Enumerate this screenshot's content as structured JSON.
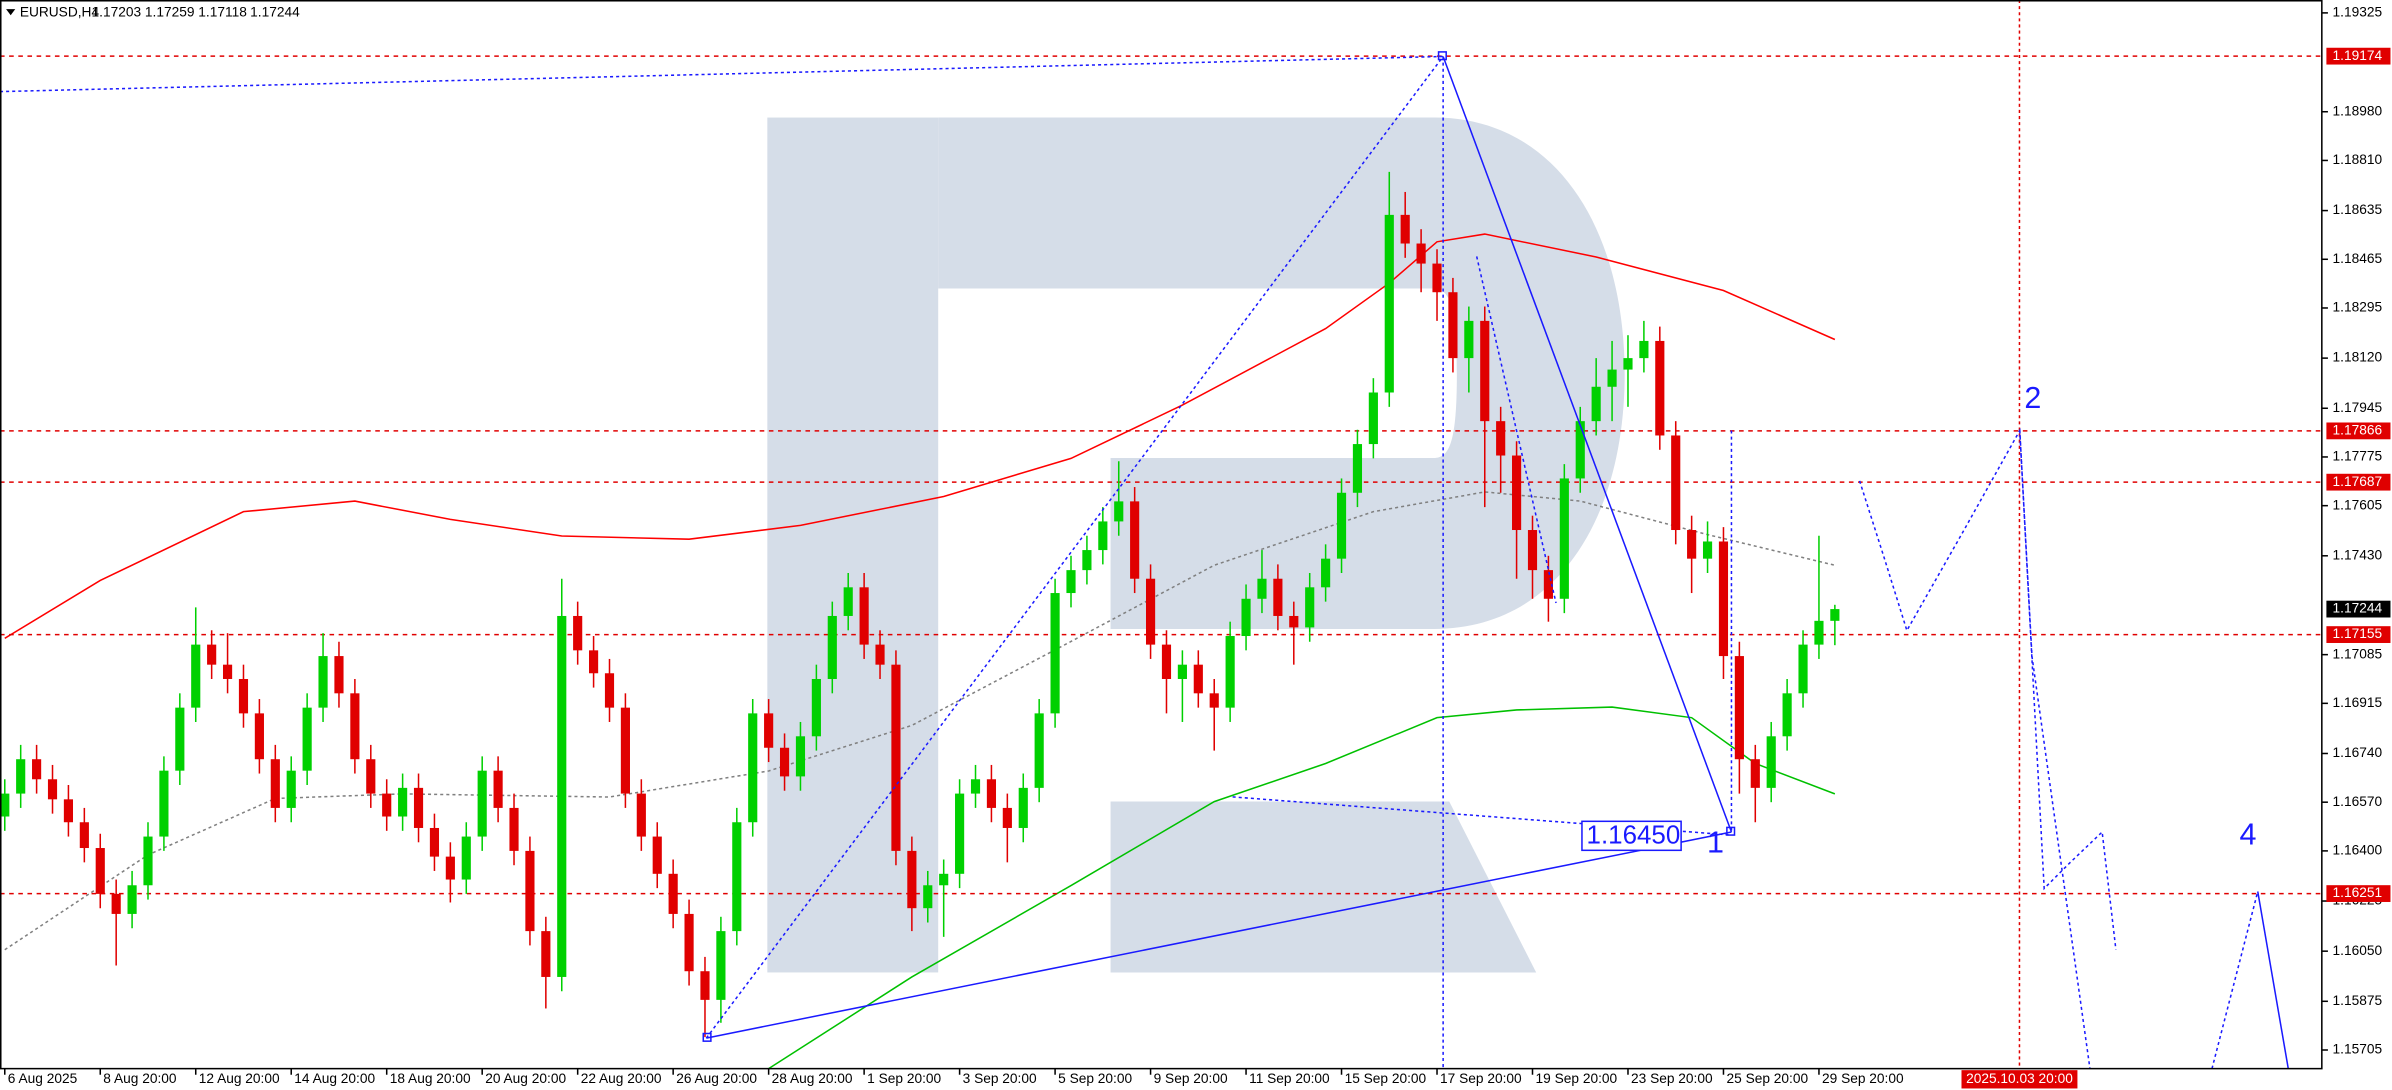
{
  "chart_data": {
    "type": "candlestick",
    "symbol": "EURUSD,H4",
    "up_color": "#00d000",
    "down_color": "#e00000",
    "xlim": [
      -0.3,
      145.6
    ],
    "ylim": [
      1.1564,
      1.1937
    ],
    "xticks": [
      {
        "value": 0,
        "label": "6 Aug 2025"
      },
      {
        "value": 6,
        "label": "8 Aug 20:00"
      },
      {
        "value": 12,
        "label": "12 Aug 20:00"
      },
      {
        "value": 18,
        "label": "14 Aug 20:00"
      },
      {
        "value": 24,
        "label": "18 Aug 20:00"
      },
      {
        "value": 30,
        "label": "20 Aug 20:00"
      },
      {
        "value": 36,
        "label": "22 Aug 20:00"
      },
      {
        "value": 42,
        "label": "26 Aug 20:00"
      },
      {
        "value": 48,
        "label": "28 Aug 20:00"
      },
      {
        "value": 54,
        "label": "1 Sep 20:00"
      },
      {
        "value": 60,
        "label": "3 Sep 20:00"
      },
      {
        "value": 66,
        "label": "5 Sep 20:00"
      },
      {
        "value": 72,
        "label": "9 Sep 20:00"
      },
      {
        "value": 78,
        "label": "11 Sep 20:00"
      },
      {
        "value": 84,
        "label": "15 Sep 20:00"
      },
      {
        "value": 90,
        "label": "17 Sep 20:00"
      },
      {
        "value": 96,
        "label": "19 Sep 20:00"
      },
      {
        "value": 102,
        "label": "23 Sep 20:00"
      },
      {
        "value": 108,
        "label": "25 Sep 20:00"
      },
      {
        "value": 114,
        "label": "29 Sep 20:00"
      }
    ],
    "yticks": [
      1.19325,
      {
        "value": 1.1898,
        "label": "1.18980"
      },
      {
        "value": 1.1881,
        "label": "1.18810"
      },
      1.18635,
      1.18465,
      1.18295,
      {
        "value": 1.1812,
        "label": "1.18120"
      },
      1.17945,
      1.17775,
      1.17605,
      {
        "value": 1.1743,
        "label": "1.17430"
      },
      1.17085,
      1.16915,
      {
        "value": 1.1674,
        "label": "1.16740"
      },
      {
        "value": 1.1657,
        "label": "1.16570"
      },
      {
        "value": 1.164,
        "label": "1.16400"
      },
      1.16225,
      {
        "value": 1.1605,
        "label": "1.16050"
      },
      1.15875,
      1.15705
    ],
    "open": [
      1.1652,
      1.166,
      1.1672,
      1.1665,
      1.1658,
      1.165,
      1.1641,
      1.1625,
      1.1618,
      1.1628,
      1.1645,
      1.1668,
      1.169,
      1.1712,
      1.1705,
      1.17,
      1.1688,
      1.1672,
      1.1655,
      1.1668,
      1.169,
      1.1708,
      1.1695,
      1.1672,
      1.166,
      1.1652,
      1.1662,
      1.1648,
      1.1638,
      1.163,
      1.1645,
      1.1668,
      1.1655,
      1.164,
      1.1612,
      1.1596,
      1.1722,
      1.171,
      1.1702,
      1.169,
      1.166,
      1.1645,
      1.1632,
      1.1618,
      1.1598,
      1.1588,
      1.1612,
      1.165,
      1.1688,
      1.1676,
      1.1666,
      1.168,
      1.17,
      1.1722,
      1.1732,
      1.1712,
      1.1705,
      1.164,
      1.162,
      1.1628,
      1.1632,
      1.166,
      1.1665,
      1.1655,
      1.1648,
      1.1662,
      1.1688,
      1.173,
      1.1738,
      1.1745,
      1.1755,
      1.1762,
      1.1735,
      1.1712,
      1.17,
      1.1705,
      1.1695,
      1.169,
      1.1715,
      1.1728,
      1.1735,
      1.1722,
      1.1718,
      1.1732,
      1.1742,
      1.1765,
      1.1782,
      1.18,
      1.1862,
      1.1852,
      1.1845,
      1.1835,
      1.1812,
      1.1825,
      1.179,
      1.1778,
      1.1752,
      1.1738,
      1.1728,
      1.177,
      1.179,
      1.1802,
      1.1808,
      1.1812,
      1.1818,
      1.1785,
      1.1752,
      1.1742,
      1.1748,
      1.1708,
      1.1672,
      1.1662,
      1.168,
      1.1695,
      1.1712,
      1.17203
    ],
    "high": [
      1.1665,
      1.1677,
      1.1677,
      1.167,
      1.1663,
      1.1655,
      1.1646,
      1.163,
      1.1633,
      1.165,
      1.1673,
      1.1695,
      1.1725,
      1.1717,
      1.1716,
      1.1705,
      1.1693,
      1.1677,
      1.1673,
      1.1695,
      1.1716,
      1.1713,
      1.17,
      1.1677,
      1.1665,
      1.1667,
      1.1667,
      1.1653,
      1.1643,
      1.165,
      1.1673,
      1.1673,
      1.166,
      1.1645,
      1.1617,
      1.1735,
      1.1727,
      1.1715,
      1.1707,
      1.1695,
      1.1665,
      1.165,
      1.1637,
      1.1623,
      1.1603,
      1.1617,
      1.1655,
      1.1693,
      1.1693,
      1.1681,
      1.1685,
      1.1705,
      1.1727,
      1.1737,
      1.1737,
      1.1717,
      1.171,
      1.1645,
      1.1633,
      1.1637,
      1.1665,
      1.167,
      1.167,
      1.166,
      1.1667,
      1.1693,
      1.1735,
      1.1743,
      1.175,
      1.176,
      1.1776,
      1.1767,
      1.174,
      1.1717,
      1.171,
      1.171,
      1.17,
      1.172,
      1.1733,
      1.1745,
      1.174,
      1.1727,
      1.1737,
      1.1747,
      1.177,
      1.1787,
      1.1805,
      1.1877,
      1.187,
      1.1857,
      1.185,
      1.184,
      1.183,
      1.183,
      1.1795,
      1.1783,
      1.1757,
      1.1743,
      1.1775,
      1.1795,
      1.1812,
      1.1818,
      1.182,
      1.1825,
      1.1823,
      1.179,
      1.1757,
      1.1755,
      1.1753,
      1.1713,
      1.1677,
      1.1685,
      1.17,
      1.1717,
      1.175,
      1.17259
    ],
    "low": [
      1.1647,
      1.1655,
      1.166,
      1.1653,
      1.1645,
      1.1636,
      1.162,
      1.16,
      1.1613,
      1.1623,
      1.164,
      1.1663,
      1.1685,
      1.17,
      1.1695,
      1.1683,
      1.1667,
      1.165,
      1.165,
      1.1663,
      1.1685,
      1.169,
      1.1667,
      1.1655,
      1.1647,
      1.1647,
      1.1643,
      1.1633,
      1.1622,
      1.1625,
      1.164,
      1.165,
      1.1635,
      1.1607,
      1.1585,
      1.1591,
      1.1705,
      1.1697,
      1.1685,
      1.1655,
      1.164,
      1.1627,
      1.1613,
      1.1593,
      1.1575,
      1.158,
      1.1607,
      1.1645,
      1.1671,
      1.1661,
      1.1661,
      1.1675,
      1.1695,
      1.1717,
      1.1707,
      1.17,
      1.1635,
      1.1612,
      1.1615,
      1.161,
      1.1627,
      1.1655,
      1.165,
      1.1636,
      1.1643,
      1.1657,
      1.1683,
      1.1725,
      1.1733,
      1.174,
      1.175,
      1.173,
      1.1707,
      1.1688,
      1.1685,
      1.169,
      1.1675,
      1.1685,
      1.171,
      1.1723,
      1.1717,
      1.1705,
      1.1713,
      1.1727,
      1.1737,
      1.176,
      1.1777,
      1.1795,
      1.1847,
      1.1835,
      1.1825,
      1.1807,
      1.18,
      1.176,
      1.1765,
      1.1735,
      1.1728,
      1.172,
      1.1723,
      1.1765,
      1.1785,
      1.179,
      1.1795,
      1.1807,
      1.178,
      1.1747,
      1.173,
      1.1737,
      1.17,
      1.166,
      1.165,
      1.1657,
      1.1675,
      1.169,
      1.1707,
      1.17118
    ],
    "close": [
      1.166,
      1.1672,
      1.1665,
      1.1658,
      1.165,
      1.1641,
      1.1625,
      1.1618,
      1.1628,
      1.1645,
      1.1668,
      1.169,
      1.1712,
      1.1705,
      1.17,
      1.1688,
      1.1672,
      1.1655,
      1.1668,
      1.169,
      1.1708,
      1.1695,
      1.1672,
      1.166,
      1.1652,
      1.1662,
      1.1648,
      1.1638,
      1.163,
      1.1645,
      1.1668,
      1.1655,
      1.164,
      1.1612,
      1.1596,
      1.1722,
      1.171,
      1.1702,
      1.169,
      1.166,
      1.1645,
      1.1632,
      1.1618,
      1.1598,
      1.1588,
      1.1612,
      1.165,
      1.1688,
      1.1676,
      1.1666,
      1.168,
      1.17,
      1.1722,
      1.1732,
      1.1712,
      1.1705,
      1.164,
      1.162,
      1.1628,
      1.1632,
      1.166,
      1.1665,
      1.1655,
      1.1648,
      1.1662,
      1.1688,
      1.173,
      1.1738,
      1.1745,
      1.1755,
      1.1762,
      1.1735,
      1.1712,
      1.17,
      1.1705,
      1.1695,
      1.169,
      1.1715,
      1.1728,
      1.1735,
      1.1722,
      1.1718,
      1.1732,
      1.1742,
      1.1765,
      1.1782,
      1.18,
      1.1862,
      1.1852,
      1.1845,
      1.1835,
      1.1812,
      1.1825,
      1.179,
      1.1778,
      1.1752,
      1.1738,
      1.1728,
      1.177,
      1.179,
      1.1802,
      1.1808,
      1.1812,
      1.1818,
      1.1785,
      1.1752,
      1.1742,
      1.1748,
      1.1708,
      1.1672,
      1.1662,
      1.168,
      1.1695,
      1.1712,
      1.17203,
      1.17244
    ],
    "moving_averages": [
      {
        "color": "#ff0000",
        "style": "solid",
        "x": [
          0,
          6,
          15,
          22,
          28,
          35,
          43,
          50,
          59,
          67,
          74,
          83,
          87,
          90,
          93,
          100,
          108,
          115
        ],
        "values": [
          1.17142,
          1.17344,
          1.17584,
          1.17621,
          1.17557,
          1.17499,
          1.17488,
          1.17536,
          1.17637,
          1.1777,
          1.17956,
          1.18223,
          1.18382,
          1.18526,
          1.18553,
          1.18473,
          1.18356,
          1.18185
        ]
      },
      {
        "color": "#00c000",
        "style": "solid",
        "x": [
          48,
          57,
          67,
          76,
          83,
          90,
          95,
          101,
          106,
          110,
          115
        ],
        "values": [
          1.1564,
          1.1596,
          1.16279,
          1.16572,
          1.16705,
          1.16865,
          1.16892,
          1.16902,
          1.16865,
          1.16705,
          1.16599
        ]
      },
      {
        "color": "#808080",
        "style": "dotted",
        "x": [
          0,
          9,
          17,
          25,
          38,
          48,
          57,
          67,
          76,
          86,
          93,
          99,
          107,
          115
        ],
        "values": [
          1.16055,
          1.16386,
          1.16583,
          1.16599,
          1.16588,
          1.16679,
          1.16838,
          1.17131,
          1.17397,
          1.17584,
          1.17653,
          1.17621,
          1.17504,
          1.17397
        ]
      }
    ],
    "levels": [
      1.19174,
      1.17866,
      1.17687,
      1.17155,
      1.16251
    ],
    "level_color": "#e00000",
    "vline": {
      "x": 126.6,
      "label": "2025.10.03 20:00",
      "color": "#e00000"
    },
    "annotations": {
      "price_label": "1.16450",
      "wave_1": "1",
      "wave_2": "2",
      "wave_4": "4"
    }
  }
}
